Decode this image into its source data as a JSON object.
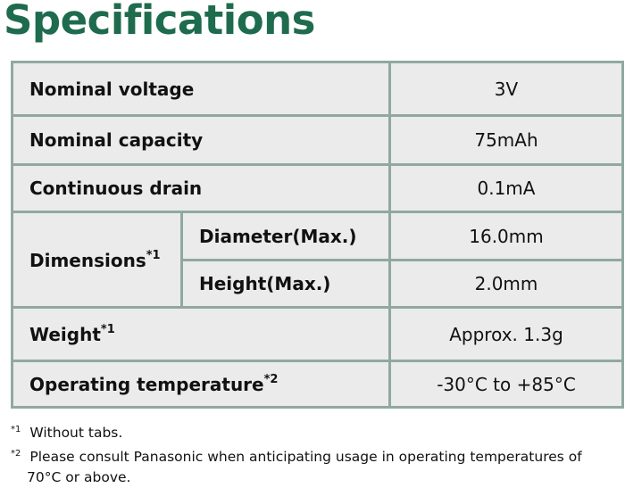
{
  "title": "Specifications",
  "table": {
    "rows": [
      {
        "label": "Nominal voltage",
        "value": "3V"
      },
      {
        "label": "Nominal capacity",
        "value": "75mAh"
      },
      {
        "label": "Continuous drain",
        "value": "0.1mA"
      },
      {
        "label": "Dimensions",
        "note": "*1",
        "sub_rows": [
          {
            "label": "Diameter(Max.)",
            "value": "16.0mm"
          },
          {
            "label": "Height(Max.)",
            "value": "2.0mm"
          }
        ]
      },
      {
        "label": "Weight",
        "note": "*1",
        "value": "Approx. 1.3g"
      },
      {
        "label": "Operating temperature",
        "note": "*2",
        "value": "-30°C to +85°C"
      }
    ]
  },
  "footnotes": [
    {
      "marker": "*1",
      "text": "Without tabs."
    },
    {
      "marker": "*2",
      "text": "Please consult Panasonic when anticipating usage in operating temperatures of 70°C or above."
    }
  ]
}
